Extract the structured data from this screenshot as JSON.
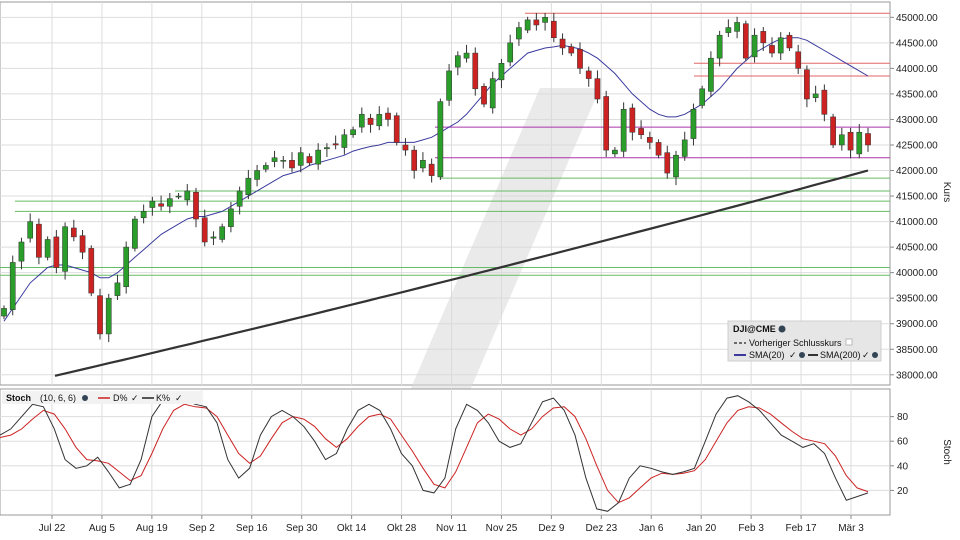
{
  "chart_data": [
    {
      "type": "candlestick",
      "ticker": "DJI@CME",
      "ylabel": "Kurs",
      "ylim": [
        37800,
        45300
      ],
      "y_ticks": [
        "38000.00",
        "38500.00",
        "39000.00",
        "39500.00",
        "40000.00",
        "40500.00",
        "41000.00",
        "41500.00",
        "42000.00",
        "42500.00",
        "43000.00",
        "43500.00",
        "44000.00",
        "44500.00",
        "45000.00"
      ],
      "x_ticks": [
        "Jul 22",
        "Aug 5",
        "Aug 19",
        "Sep 2",
        "Sep 16",
        "Sep 30",
        "Okt 14",
        "Okt 28",
        "Nov 11",
        "Nov 25",
        "Dez 9",
        "Dez 23",
        "Jan 6",
        "Jan 20",
        "Feb 3",
        "Feb 17",
        "Mär 3"
      ],
      "grid": true,
      "legend_position": "bottom-right",
      "legend": {
        "title": "DJI@CME",
        "prev_close_label": "Vorheriger Schlusskurs",
        "sma20_label": "SMA(20)",
        "sma200_label": "SMA(200)"
      },
      "colors": {
        "up": "#2a9d2a",
        "down": "#cc2222",
        "sma20": "#3b3b9e",
        "sma200": "#333333",
        "support": "#66bb66",
        "resistance": "#e06666",
        "magenta": "#aa33aa"
      },
      "horizontal_lines": {
        "resistance": [
          45080,
          44100,
          43850
        ],
        "magenta": [
          42850,
          42250
        ],
        "support": [
          41850,
          41600,
          41400,
          41200,
          40100,
          39950
        ]
      },
      "close_series": [
        39300,
        40200,
        40600,
        41000,
        40300,
        40650,
        40100,
        40900,
        40700,
        40400,
        39600,
        38800,
        39500,
        39800,
        40500,
        41050,
        41200,
        41400,
        41300,
        41450,
        41500,
        41600,
        41050,
        40600,
        40700,
        40900,
        41250,
        41600,
        41850,
        42000,
        42100,
        42250,
        42200,
        42050,
        42350,
        42150,
        42400,
        42450,
        42500,
        42700,
        42800,
        43100,
        42900,
        43100,
        43000,
        42550,
        42400,
        42000,
        42200,
        41900,
        43350,
        43950,
        44250,
        44300,
        43600,
        43300,
        43800,
        44100,
        44500,
        44800,
        44950,
        44850,
        45000,
        44600,
        44400,
        44300,
        44000,
        43800,
        43400,
        42400,
        42400,
        43200,
        42750,
        42700,
        42550,
        42300,
        41950,
        42300,
        42600,
        43200,
        43600,
        44200,
        44650,
        44800,
        44900,
        44200,
        44650,
        44500,
        44300,
        44600,
        44400,
        44000,
        43400,
        43500,
        43100,
        42500,
        42700,
        42400,
        42750,
        42500
      ],
      "sma20_series": [
        39050,
        39300,
        39550,
        39800,
        39950,
        40100,
        40150,
        40150,
        40100,
        40050,
        40000,
        39900,
        39900,
        40000,
        40150,
        40300,
        40450,
        40600,
        40750,
        40850,
        40950,
        41050,
        41100,
        41100,
        41150,
        41200,
        41300,
        41400,
        41500,
        41600,
        41700,
        41800,
        41900,
        41950,
        42000,
        42100,
        42150,
        42200,
        42250,
        42300,
        42380,
        42430,
        42470,
        42500,
        42550,
        42550,
        42550,
        42550,
        42600,
        42650,
        42750,
        42850,
        42950,
        43100,
        43300,
        43500,
        43700,
        43850,
        44000,
        44150,
        44300,
        44350,
        44400,
        44420,
        44450,
        44420,
        44380,
        44300,
        44200,
        44050,
        43900,
        43700,
        43500,
        43350,
        43200,
        43100,
        43050,
        43050,
        43100,
        43200,
        43300,
        43450,
        43600,
        43800,
        44000,
        44150,
        44300,
        44400,
        44500,
        44580,
        44600,
        44600,
        44550,
        44450,
        44350,
        44250,
        44150,
        44050,
        43950,
        43850
      ],
      "sma200_range": [
        37980,
        42000
      ],
      "stoch": {
        "label": "Stoch",
        "params": "(10, 6, 6)",
        "d_label": "D%",
        "k_label": "K%",
        "ylabel": "Stoch",
        "y_ticks": [
          "20",
          "40",
          "60",
          "80"
        ],
        "ylim": [
          0,
          100
        ],
        "k_series": [
          65,
          70,
          80,
          90,
          88,
          70,
          45,
          38,
          40,
          47,
          35,
          22,
          25,
          45,
          80,
          93,
          95,
          93,
          90,
          88,
          75,
          45,
          30,
          38,
          65,
          80,
          85,
          80,
          72,
          60,
          45,
          50,
          70,
          85,
          90,
          85,
          70,
          50,
          40,
          20,
          18,
          30,
          70,
          90,
          85,
          75,
          60,
          55,
          58,
          75,
          92,
          95,
          85,
          65,
          30,
          5,
          3,
          10,
          30,
          40,
          38,
          35,
          33,
          35,
          38,
          60,
          82,
          95,
          97,
          92,
          85,
          75,
          65,
          60,
          55,
          58,
          50,
          30,
          12,
          15,
          18
        ],
        "d_series": [
          63,
          65,
          70,
          78,
          85,
          82,
          70,
          55,
          45,
          44,
          42,
          35,
          28,
          32,
          50,
          70,
          85,
          90,
          88,
          87,
          80,
          65,
          50,
          42,
          48,
          62,
          75,
          80,
          78,
          72,
          62,
          55,
          62,
          72,
          80,
          82,
          78,
          65,
          52,
          38,
          25,
          22,
          35,
          55,
          75,
          82,
          78,
          70,
          65,
          70,
          80,
          87,
          88,
          80,
          62,
          40,
          20,
          10,
          14,
          22,
          30,
          34,
          33,
          34,
          36,
          45,
          60,
          75,
          85,
          88,
          87,
          82,
          75,
          68,
          62,
          60,
          58,
          48,
          32,
          22,
          19
        ]
      }
    }
  ]
}
